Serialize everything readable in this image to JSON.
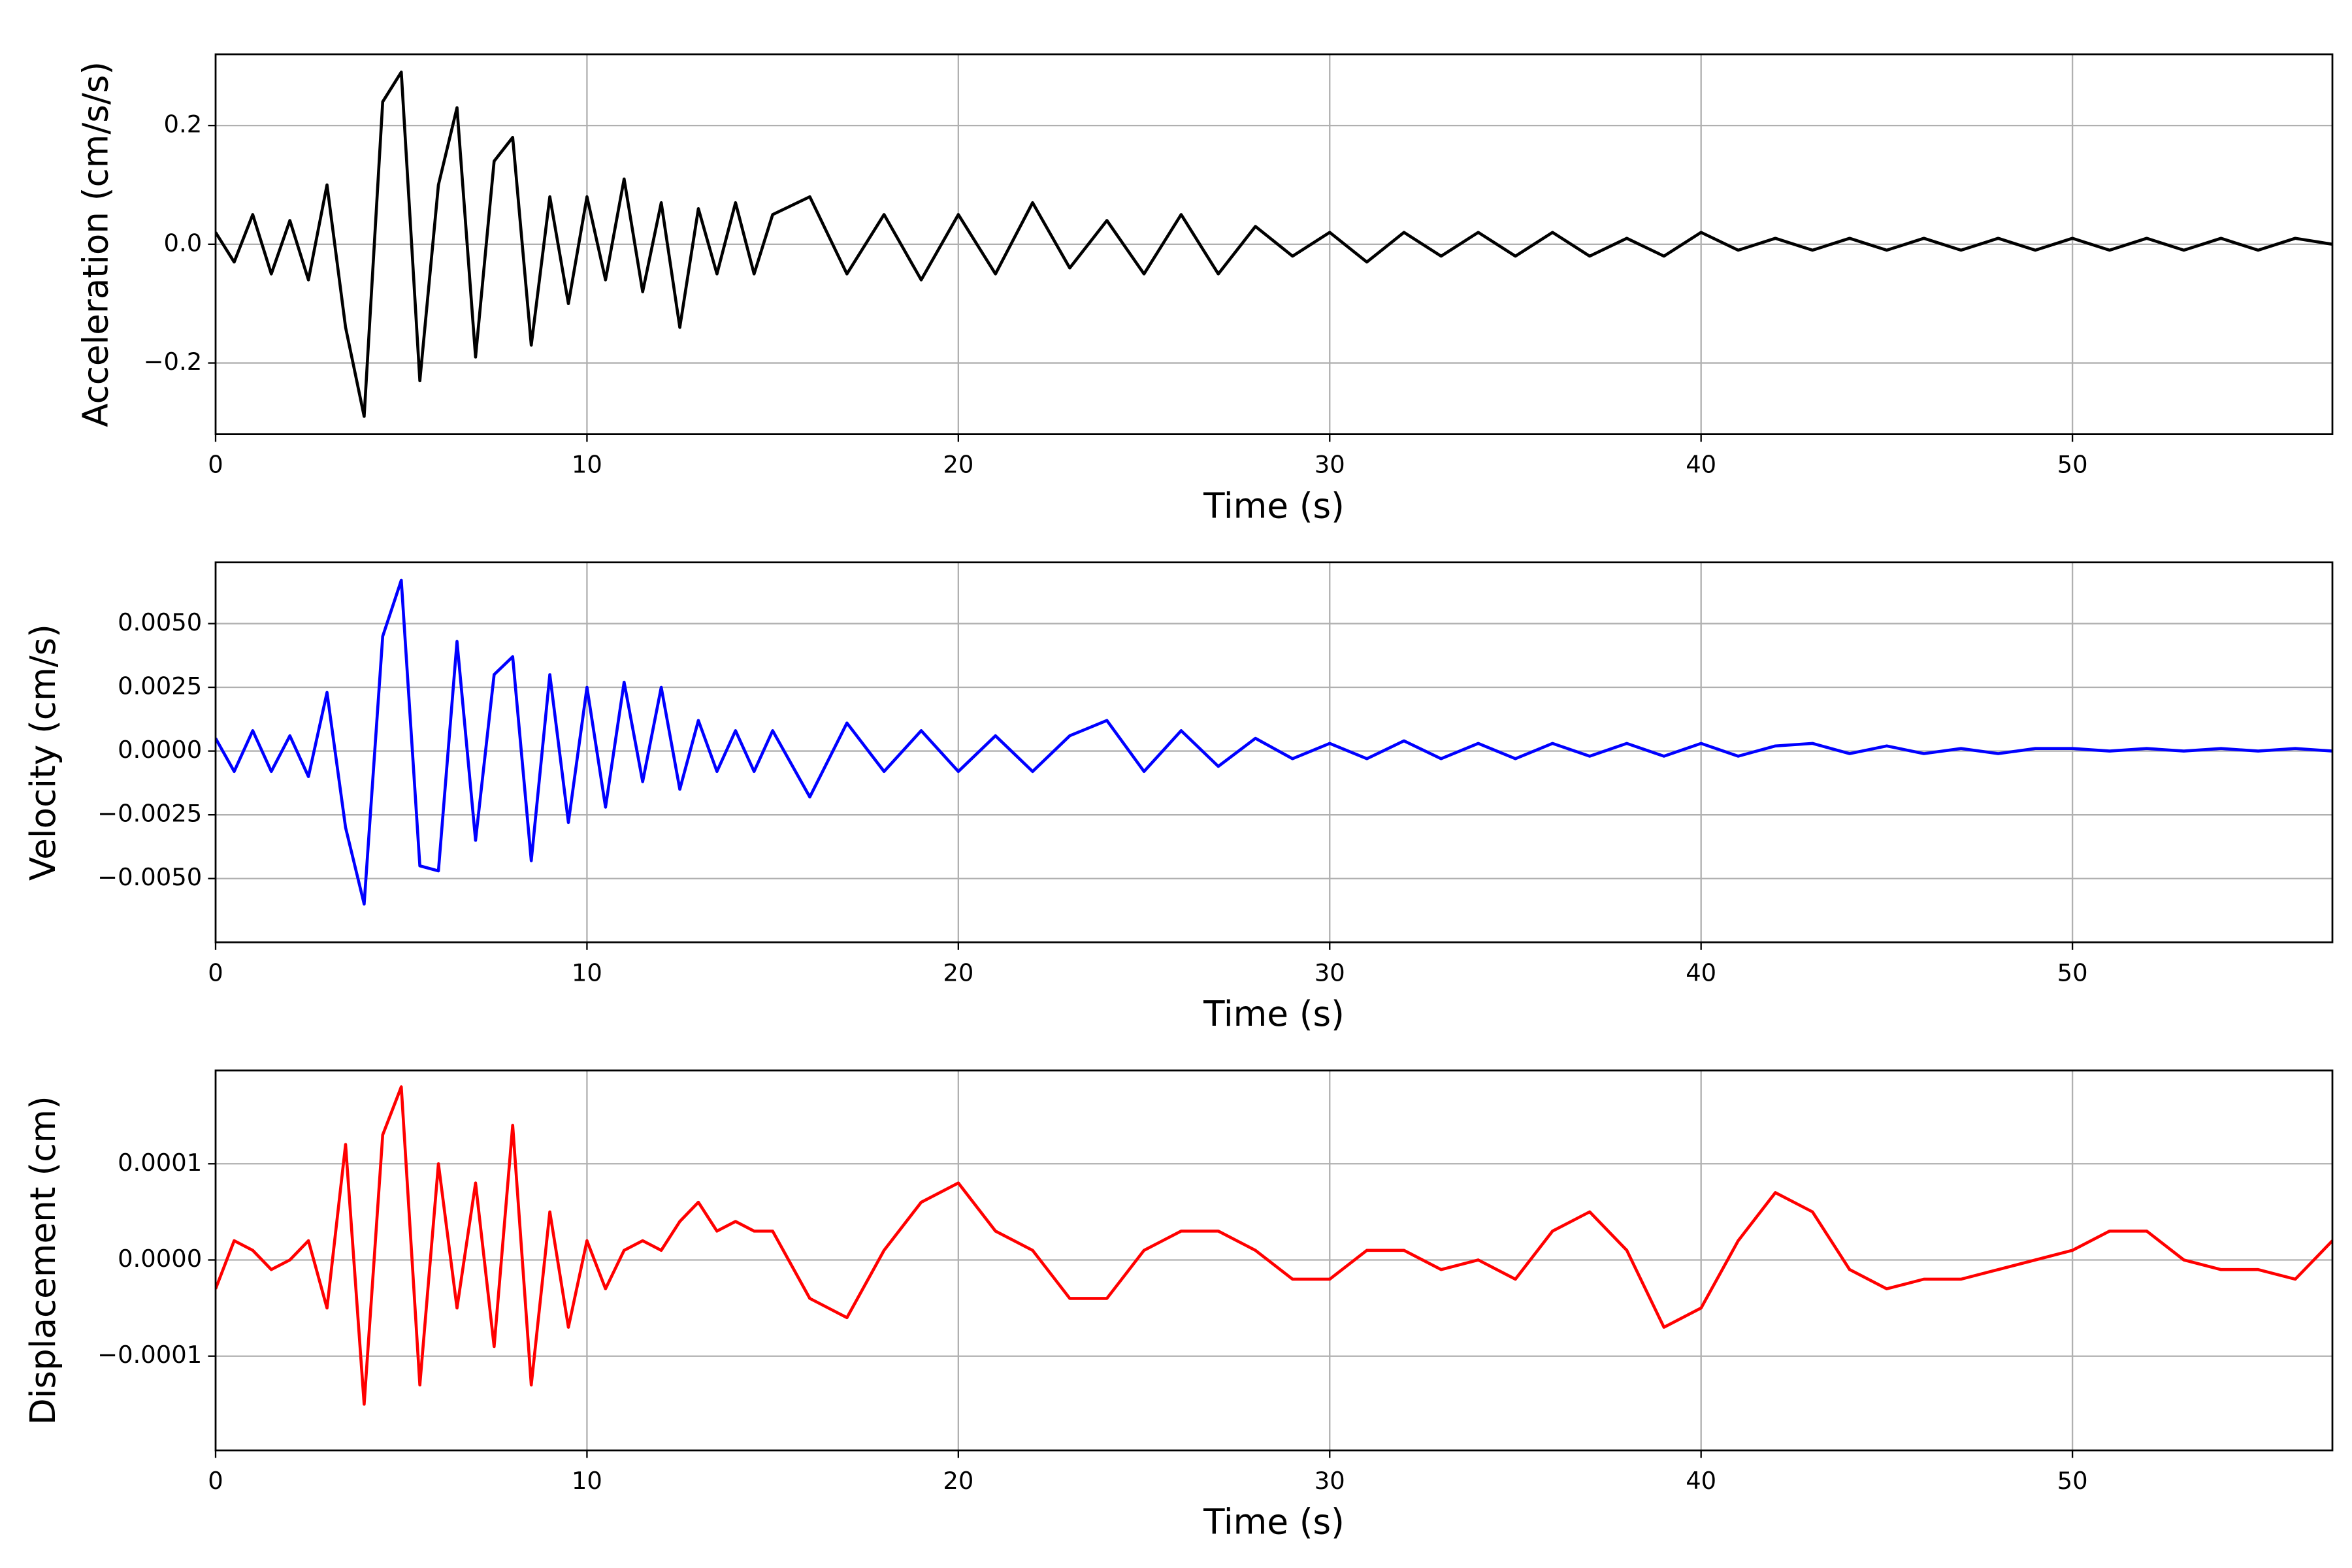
{
  "chart_data": [
    {
      "type": "line",
      "xlabel": "Time (s)",
      "ylabel": "Acceleration (cm/s/s)",
      "x": [
        0,
        0.5,
        1,
        1.5,
        2,
        2.5,
        3,
        3.5,
        4,
        4.5,
        5,
        5.5,
        6,
        6.5,
        7,
        7.5,
        8,
        8.5,
        9,
        9.5,
        10,
        10.5,
        11,
        11.5,
        12,
        12.5,
        13,
        13.5,
        14,
        14.5,
        15,
        16,
        17,
        18,
        19,
        20,
        21,
        22,
        23,
        24,
        25,
        26,
        27,
        28,
        29,
        30,
        31,
        32,
        33,
        34,
        35,
        36,
        37,
        38,
        39,
        40,
        41,
        42,
        43,
        44,
        45,
        46,
        47,
        48,
        49,
        50,
        51,
        52,
        53,
        54,
        55,
        56,
        57
      ],
      "series": [
        {
          "color": "#000000",
          "values": [
            0.02,
            -0.03,
            0.05,
            -0.05,
            0.04,
            -0.06,
            0.1,
            -0.14,
            -0.29,
            0.24,
            0.29,
            -0.23,
            0.1,
            0.23,
            -0.19,
            0.14,
            0.18,
            -0.17,
            0.08,
            -0.1,
            0.08,
            -0.06,
            0.11,
            -0.08,
            0.07,
            -0.14,
            0.06,
            -0.05,
            0.07,
            -0.05,
            0.05,
            0.08,
            -0.05,
            0.05,
            -0.06,
            0.05,
            -0.05,
            0.07,
            -0.04,
            0.04,
            -0.05,
            0.05,
            -0.05,
            0.03,
            -0.02,
            0.02,
            -0.03,
            0.02,
            -0.02,
            0.02,
            -0.02,
            0.02,
            -0.02,
            0.01,
            -0.02,
            0.02,
            -0.01,
            0.01,
            -0.01,
            0.01,
            -0.01,
            0.01,
            -0.01,
            0.01,
            -0.01,
            0.01,
            -0.01,
            0.01,
            -0.01,
            0.01,
            -0.01,
            0.01,
            0.0
          ]
        }
      ],
      "xlim": [
        0,
        57
      ],
      "xticks": [
        0,
        10,
        20,
        30,
        40,
        50
      ],
      "ylim": [
        -0.32,
        0.32
      ],
      "yticks": [
        {
          "value": -0.2,
          "label": "−0.2"
        },
        {
          "value": 0,
          "label": "0.0"
        },
        0.2
      ],
      "grid": true
    },
    {
      "type": "line",
      "xlabel": "Time (s)",
      "ylabel": "Velocity (cm/s)",
      "x": [
        0,
        0.5,
        1,
        1.5,
        2,
        2.5,
        3,
        3.5,
        4,
        4.5,
        5,
        5.5,
        6,
        6.5,
        7,
        7.5,
        8,
        8.5,
        9,
        9.5,
        10,
        10.5,
        11,
        11.5,
        12,
        12.5,
        13,
        13.5,
        14,
        14.5,
        15,
        16,
        17,
        18,
        19,
        20,
        21,
        22,
        23,
        24,
        25,
        26,
        27,
        28,
        29,
        30,
        31,
        32,
        33,
        34,
        35,
        36,
        37,
        38,
        39,
        40,
        41,
        42,
        43,
        44,
        45,
        46,
        47,
        48,
        49,
        50,
        51,
        52,
        53,
        54,
        55,
        56,
        57
      ],
      "series": [
        {
          "color": "#0000ff",
          "values": [
            0.0005,
            -0.0008,
            0.0008,
            -0.0008,
            0.0006,
            -0.001,
            0.0023,
            -0.003,
            -0.006,
            0.0045,
            0.0067,
            -0.0045,
            -0.0047,
            0.0043,
            -0.0035,
            0.003,
            0.0037,
            -0.0043,
            0.003,
            -0.0028,
            0.0025,
            -0.0022,
            0.0027,
            -0.0012,
            0.0025,
            -0.0015,
            0.0012,
            -0.0008,
            0.0008,
            -0.0008,
            0.0008,
            -0.0018,
            0.0011,
            -0.0008,
            0.0008,
            -0.0008,
            0.0006,
            -0.0008,
            0.0006,
            0.0012,
            -0.0008,
            0.0008,
            -0.0006,
            0.0005,
            -0.0003,
            0.0003,
            -0.0003,
            0.0004,
            -0.0003,
            0.0003,
            -0.0003,
            0.0003,
            -0.0002,
            0.0003,
            -0.0002,
            0.0003,
            -0.0002,
            0.0002,
            0.0003,
            -0.0001,
            0.0002,
            -0.0001,
            0.0001,
            -0.0001,
            0.0001,
            0.0001,
            0,
            0.0001,
            0,
            0.0001,
            0,
            0.0001,
            0
          ]
        }
      ],
      "xlim": [
        0,
        57
      ],
      "xticks": [
        0,
        10,
        20,
        30,
        40,
        50
      ],
      "ylim": [
        -0.0075,
        0.0074
      ],
      "yticks": [
        {
          "value": -0.005,
          "label": "−0.0050"
        },
        {
          "value": -0.0025,
          "label": "−0.0025"
        },
        {
          "value": 0,
          "label": "0.0000"
        },
        0.0025,
        {
          "value": 0.005,
          "label": "0.0050"
        }
      ],
      "grid": true
    },
    {
      "type": "line",
      "xlabel": "Time (s)",
      "ylabel": "Displacement (cm)",
      "x": [
        0,
        0.5,
        1,
        1.5,
        2,
        2.5,
        3,
        3.5,
        4,
        4.5,
        5,
        5.5,
        6,
        6.5,
        7,
        7.5,
        8,
        8.5,
        9,
        9.5,
        10,
        10.5,
        11,
        11.5,
        12,
        12.5,
        13,
        13.5,
        14,
        14.5,
        15,
        16,
        17,
        18,
        19,
        20,
        21,
        22,
        23,
        24,
        25,
        26,
        27,
        28,
        29,
        30,
        31,
        32,
        33,
        34,
        35,
        36,
        37,
        38,
        39,
        40,
        41,
        42,
        43,
        44,
        45,
        46,
        47,
        48,
        49,
        50,
        51,
        52,
        53,
        54,
        55,
        56,
        57
      ],
      "series": [
        {
          "color": "#ff0000",
          "values": [
            -3e-05,
            2e-05,
            1e-05,
            -1e-05,
            0,
            2e-05,
            -5e-05,
            0.00012,
            -0.00015,
            0.00013,
            0.00018,
            -0.00013,
            0.0001,
            -5e-05,
            8e-05,
            -9e-05,
            0.00014,
            -0.00013,
            5e-05,
            -7e-05,
            2e-05,
            -3e-05,
            1e-05,
            2e-05,
            1e-05,
            4e-05,
            6e-05,
            3e-05,
            4e-05,
            3e-05,
            3e-05,
            -4e-05,
            -6e-05,
            1e-05,
            6e-05,
            8e-05,
            3e-05,
            1e-05,
            -4e-05,
            -4e-05,
            1e-05,
            3e-05,
            3e-05,
            1e-05,
            -2e-05,
            -2e-05,
            1e-05,
            1e-05,
            -1e-05,
            0,
            -2e-05,
            3e-05,
            5e-05,
            1e-05,
            -7e-05,
            -5e-05,
            2e-05,
            7e-05,
            5e-05,
            -1e-05,
            -3e-05,
            -2e-05,
            -2e-05,
            -1e-05,
            0,
            1e-05,
            3e-05,
            3e-05,
            0,
            -1e-05,
            -1e-05,
            -2e-05,
            2e-05
          ]
        }
      ],
      "xlim": [
        0,
        57
      ],
      "xticks": [
        0,
        10,
        20,
        30,
        40,
        50
      ],
      "ylim": [
        -0.000198,
        0.000197
      ],
      "yticks": [
        {
          "value": -0.0001,
          "label": "−0.0001"
        },
        {
          "value": 0,
          "label": "0.0000"
        },
        0.0001
      ],
      "grid": true
    }
  ]
}
